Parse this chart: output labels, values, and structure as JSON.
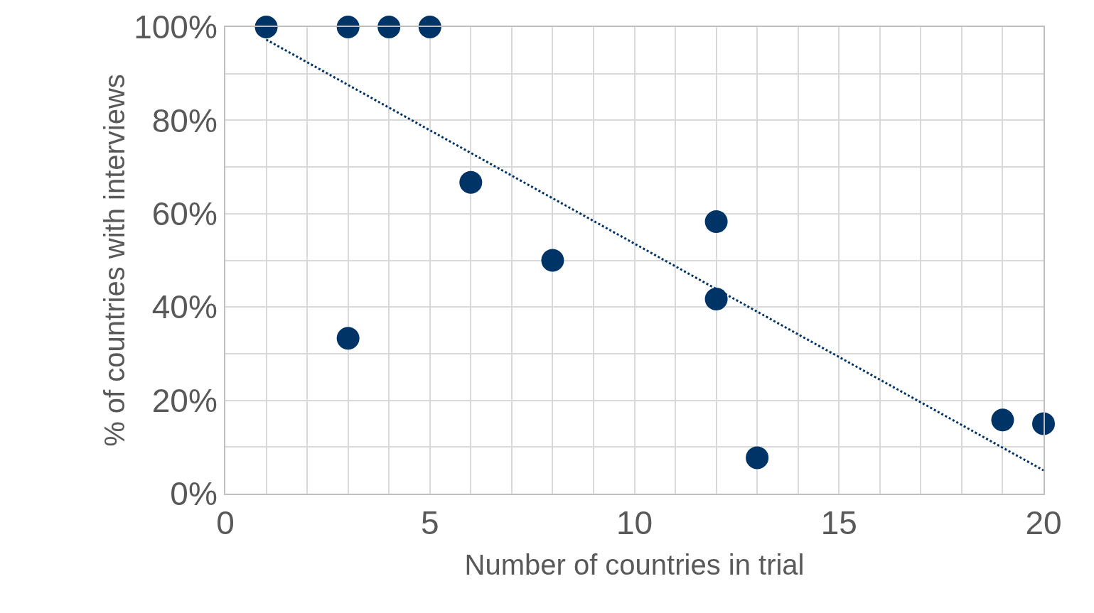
{
  "chart_data": {
    "type": "scatter",
    "xlabel": "Number of countries in trial",
    "ylabel": "% of countries with interviews",
    "series": [
      {
        "color": "#003366",
        "marker": "circle",
        "x": [
          1,
          3,
          4,
          5,
          6,
          3,
          8,
          12,
          12,
          13,
          19,
          20
        ],
        "values": [
          100,
          100,
          100,
          100,
          66.7,
          33.3,
          50,
          58.3,
          41.7,
          7.7,
          15.8,
          15
        ]
      },
      {
        "type": "line",
        "color": "#003366",
        "line_style": "dotted",
        "marker": "none",
        "x": [
          1,
          20
        ],
        "values": [
          97.3,
          5
        ]
      }
    ],
    "xlim": [
      0,
      20
    ],
    "xticks": [
      0,
      {
        "value": 1,
        "label": null
      },
      {
        "value": 2,
        "label": null
      },
      {
        "value": 3,
        "label": null
      },
      {
        "value": 4,
        "label": null
      },
      5,
      {
        "value": 6,
        "label": null
      },
      {
        "value": 7,
        "label": null
      },
      {
        "value": 8,
        "label": null
      },
      {
        "value": 9,
        "label": null
      },
      10,
      {
        "value": 11,
        "label": null
      },
      {
        "value": 12,
        "label": null
      },
      {
        "value": 13,
        "label": null
      },
      {
        "value": 14,
        "label": null
      },
      15,
      {
        "value": 16,
        "label": null
      },
      {
        "value": 17,
        "label": null
      },
      {
        "value": 18,
        "label": null
      },
      {
        "value": 19,
        "label": null
      },
      20
    ],
    "ylim": [
      0,
      100
    ],
    "yticks": [
      {
        "value": 0,
        "label": "0%"
      },
      {
        "value": 10,
        "label": null
      },
      {
        "value": 20,
        "label": "20%"
      },
      {
        "value": 30,
        "label": null
      },
      {
        "value": 40,
        "label": "40%"
      },
      {
        "value": 50,
        "label": null
      },
      {
        "value": 60,
        "label": "60%"
      },
      {
        "value": 70,
        "label": null
      },
      {
        "value": 80,
        "label": "80%"
      },
      {
        "value": 90,
        "label": null
      },
      {
        "value": 100,
        "label": "100%"
      }
    ],
    "grid": true,
    "legend": false
  }
}
